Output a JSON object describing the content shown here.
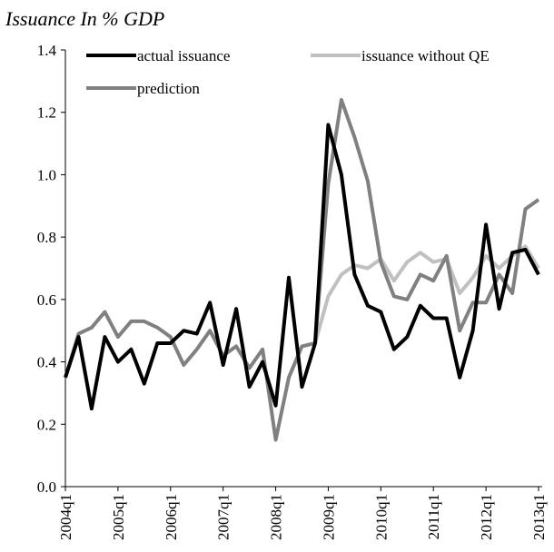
{
  "chart_data": {
    "type": "line",
    "title": "Issuance In % GDP",
    "categories": [
      "2004q1",
      null,
      null,
      null,
      "2005q1",
      null,
      null,
      null,
      "2006q1",
      null,
      null,
      null,
      "2007q1",
      null,
      null,
      null,
      "2008q1",
      null,
      null,
      null,
      "2009q1",
      null,
      null,
      null,
      "2010q1",
      null,
      null,
      null,
      "2011q1",
      null,
      null,
      null,
      "2012q1",
      null,
      null,
      null,
      "2013q1"
    ],
    "series": [
      {
        "name": "actual issuance",
        "color": "#000000",
        "values": [
          0.35,
          0.48,
          0.25,
          0.48,
          0.4,
          0.44,
          0.33,
          0.46,
          0.46,
          0.5,
          0.49,
          0.59,
          0.39,
          0.57,
          0.32,
          0.4,
          0.26,
          0.67,
          0.32,
          0.46,
          1.16,
          1.0,
          0.68,
          0.58,
          0.56,
          0.44,
          0.48,
          0.58,
          0.54,
          0.54,
          0.35,
          0.5,
          0.84,
          0.57,
          0.75,
          0.76,
          0.68
        ]
      },
      {
        "name": "issuance without QE",
        "color": "#c0c0c0",
        "values": [
          null,
          null,
          null,
          null,
          null,
          null,
          null,
          null,
          null,
          null,
          null,
          null,
          null,
          null,
          null,
          null,
          null,
          null,
          null,
          0.46,
          0.61,
          0.68,
          0.71,
          0.7,
          0.73,
          0.66,
          0.72,
          0.75,
          0.72,
          0.73,
          0.62,
          0.67,
          0.74,
          0.7,
          0.74,
          0.77,
          0.7
        ]
      },
      {
        "name": "prediction",
        "color": "#808080",
        "values": [
          0.35,
          0.49,
          0.51,
          0.56,
          0.48,
          0.53,
          0.53,
          0.51,
          0.48,
          0.39,
          0.44,
          0.5,
          0.42,
          0.45,
          0.38,
          0.44,
          0.15,
          0.35,
          0.45,
          0.46,
          0.97,
          1.24,
          1.12,
          0.98,
          0.72,
          0.61,
          0.6,
          0.68,
          0.66,
          0.74,
          0.5,
          0.59,
          0.59,
          0.68,
          0.62,
          0.89,
          0.92
        ]
      }
    ],
    "ylim": [
      0,
      1.4
    ],
    "yticks": [
      {
        "value": 0,
        "label": "0.0"
      },
      0.2,
      0.4,
      0.6,
      0.8,
      {
        "value": 1,
        "label": "1.0"
      },
      1.2,
      1.4
    ]
  }
}
